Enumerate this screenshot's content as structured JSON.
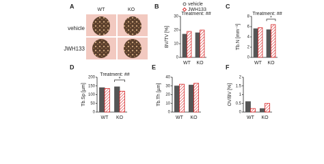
{
  "image_panel": {
    "panel": "A",
    "columns": [
      "WT",
      "KO"
    ],
    "rows": [
      "vehicle",
      "JWH133"
    ]
  },
  "chart_data": [
    {
      "type": "bar",
      "panel": "B",
      "ylabel": "BV/TV [%]",
      "categories": [
        "WT",
        "KO"
      ],
      "series": [
        {
          "name": "vehicle",
          "color": "#555555",
          "values": [
            17,
            18
          ]
        },
        {
          "name": "JWH133",
          "color": "#d62728",
          "values": [
            19,
            20
          ]
        }
      ],
      "ylim": [
        0,
        30
      ],
      "yticks": [
        0,
        10,
        20,
        30
      ],
      "annotations": [
        "Treatment: ##"
      ]
    },
    {
      "type": "bar",
      "panel": "C",
      "ylabel": "Tb.N [mm⁻¹]",
      "categories": [
        "WT",
        "KO"
      ],
      "series": [
        {
          "color": "#555555",
          "values": [
            5.6,
            5.4
          ]
        },
        {
          "color": "#d62728",
          "values": [
            5.8,
            6.4
          ]
        }
      ],
      "ylim": [
        0,
        8
      ],
      "yticks": [
        0,
        2,
        4,
        6,
        8
      ],
      "annotations": [
        "Treatment: ##",
        "*"
      ]
    },
    {
      "type": "bar",
      "panel": "D",
      "ylabel": "Tb.Sp [µm]",
      "categories": [
        "WT",
        "KO"
      ],
      "series": [
        {
          "color": "#555555",
          "values": [
            140,
            145
          ]
        },
        {
          "color": "#d62728",
          "values": [
            135,
            120
          ]
        }
      ],
      "ylim": [
        0,
        200
      ],
      "yticks": [
        0,
        50,
        100,
        150,
        200
      ],
      "annotations": [
        "Treatment: ##",
        "*"
      ]
    },
    {
      "type": "bar",
      "panel": "E",
      "ylabel": "Tb.Th [µm]",
      "categories": [
        "WT",
        "KO"
      ],
      "series": [
        {
          "color": "#555555",
          "values": [
            30,
            31
          ]
        },
        {
          "color": "#d62728",
          "values": [
            32,
            33
          ]
        }
      ],
      "ylim": [
        0,
        40
      ],
      "yticks": [
        0,
        10,
        20,
        30,
        40
      ]
    },
    {
      "type": "bar",
      "panel": "F",
      "ylabel": "OV/BV [%]",
      "categories": [
        "WT",
        "KO"
      ],
      "series": [
        {
          "color": "#555555",
          "values": [
            0.6,
            0.2
          ]
        },
        {
          "color": "#d62728",
          "values": [
            0.2,
            0.5
          ]
        }
      ],
      "ylim": [
        0,
        2
      ],
      "yticks": [
        0,
        0.5,
        1,
        1.5,
        2
      ]
    }
  ]
}
